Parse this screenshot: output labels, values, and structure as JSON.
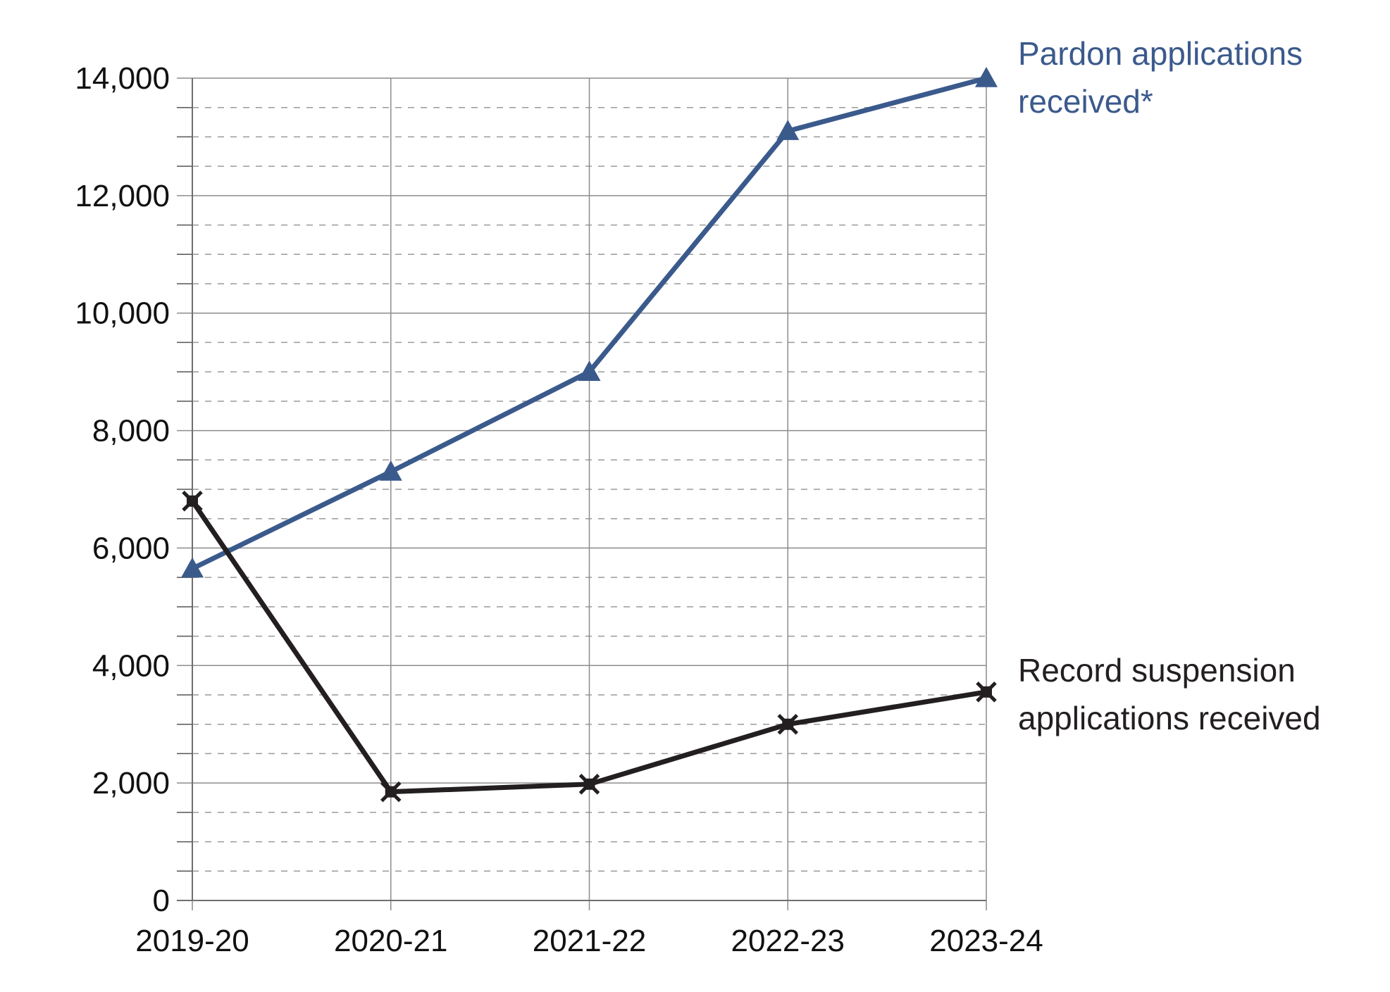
{
  "chart_data": {
    "type": "line",
    "title": "",
    "xlabel": "",
    "ylabel": "",
    "categories": [
      "2019-20",
      "2020-21",
      "2021-22",
      "2022-23",
      "2023-24"
    ],
    "ylim": [
      0,
      14000
    ],
    "y_ticks": [
      0,
      2000,
      4000,
      6000,
      8000,
      10000,
      12000,
      14000
    ],
    "y_tick_labels": [
      "0",
      "2,000",
      "4,000",
      "6,000",
      "8,000",
      "10,000",
      "12,000",
      "14,000"
    ],
    "grid": {
      "major": true,
      "minor": "dashed",
      "minor_step": 500
    },
    "legend": "inline labels at right end of each line",
    "series": [
      {
        "name": "Pardon applications received*",
        "label_lines": [
          "Pardon applications",
          "received*"
        ],
        "color": "#3b5a8c",
        "marker": "triangle",
        "values": [
          5650,
          7300,
          9000,
          13100,
          14000
        ]
      },
      {
        "name": "Record suspension applications received",
        "label_lines": [
          "Record suspension",
          "applications received"
        ],
        "color": "#231f20",
        "marker": "star",
        "values": [
          6800,
          1850,
          1980,
          3000,
          3550
        ]
      }
    ]
  }
}
